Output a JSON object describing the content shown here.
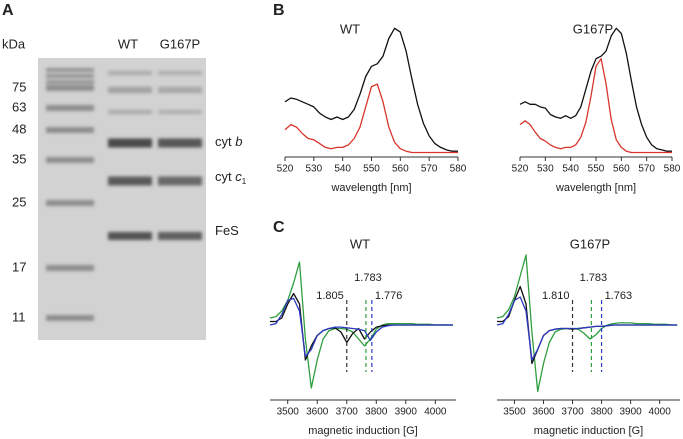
{
  "panel_labels": [
    "A",
    "B",
    "C"
  ],
  "gel": {
    "unit": "kDa",
    "markers": [
      75,
      63,
      48,
      35,
      25,
      17,
      11
    ],
    "lanes": [
      "WT",
      "G167P"
    ],
    "bands": [
      {
        "prefix": "cyt",
        "italic": "b"
      },
      {
        "prefix": "cyt",
        "italic": "c",
        "sub": "1"
      },
      {
        "prefix": "FeS"
      }
    ]
  },
  "chart_data": [
    {
      "type": "line",
      "title": "WT",
      "x_label": "wavelength [nm]",
      "x": [
        520,
        522,
        524,
        526,
        528,
        530,
        532,
        534,
        536,
        538,
        540,
        542,
        544,
        546,
        548,
        550,
        552,
        554,
        556,
        558,
        560,
        562,
        564,
        566,
        568,
        570,
        572,
        574,
        576,
        578,
        580
      ],
      "xlim": [
        520,
        580
      ],
      "xticks": [
        520,
        530,
        540,
        550,
        560,
        570,
        580
      ],
      "ylim": [
        0,
        1.05
      ],
      "series": [
        {
          "color": "#111111",
          "values": [
            0.42,
            0.45,
            0.44,
            0.42,
            0.4,
            0.38,
            0.33,
            0.3,
            0.28,
            0.3,
            0.28,
            0.3,
            0.36,
            0.48,
            0.62,
            0.7,
            0.72,
            0.78,
            0.92,
            1.0,
            0.97,
            0.82,
            0.6,
            0.4,
            0.25,
            0.15,
            0.09,
            0.06,
            0.04,
            0.03,
            0.03
          ]
        },
        {
          "color": "#d9342b",
          "values": [
            0.2,
            0.24,
            0.22,
            0.17,
            0.13,
            0.12,
            0.09,
            0.06,
            0.05,
            0.06,
            0.06,
            0.08,
            0.13,
            0.22,
            0.38,
            0.54,
            0.56,
            0.42,
            0.22,
            0.1,
            0.05,
            0.03,
            0.02,
            0.02,
            0.02,
            0.02,
            0.02,
            0.02,
            0.02,
            0.02,
            0.02
          ]
        }
      ]
    },
    {
      "type": "line",
      "title": "G167P",
      "x_label": "wavelength [nm]",
      "x": [
        520,
        522,
        524,
        526,
        528,
        530,
        532,
        534,
        536,
        538,
        540,
        542,
        544,
        546,
        548,
        550,
        552,
        554,
        556,
        558,
        560,
        562,
        564,
        566,
        568,
        570,
        572,
        574,
        576,
        578,
        580
      ],
      "xlim": [
        520,
        580
      ],
      "xticks": [
        520,
        530,
        540,
        550,
        560,
        570,
        580
      ],
      "ylim": [
        0,
        1.05
      ],
      "series": [
        {
          "color": "#111111",
          "values": [
            0.4,
            0.42,
            0.4,
            0.4,
            0.38,
            0.37,
            0.32,
            0.3,
            0.29,
            0.31,
            0.29,
            0.31,
            0.38,
            0.52,
            0.66,
            0.76,
            0.78,
            0.82,
            0.94,
            1.0,
            0.96,
            0.8,
            0.58,
            0.38,
            0.24,
            0.14,
            0.08,
            0.05,
            0.04,
            0.03,
            0.03
          ]
        },
        {
          "color": "#d9342b",
          "values": [
            0.24,
            0.27,
            0.24,
            0.18,
            0.13,
            0.11,
            0.08,
            0.06,
            0.05,
            0.06,
            0.06,
            0.08,
            0.14,
            0.26,
            0.46,
            0.7,
            0.76,
            0.56,
            0.28,
            0.12,
            0.06,
            0.03,
            0.02,
            0.02,
            0.02,
            0.02,
            0.02,
            0.02,
            0.02,
            0.02,
            0.02
          ]
        }
      ]
    },
    {
      "type": "line",
      "title": "WT",
      "x_label": "magnetic induction [G]",
      "x": [
        3440,
        3460,
        3480,
        3500,
        3520,
        3540,
        3560,
        3580,
        3600,
        3620,
        3640,
        3660,
        3680,
        3700,
        3720,
        3740,
        3760,
        3780,
        3800,
        3820,
        3840,
        3860,
        3880,
        3900,
        3920,
        3940,
        3960,
        3980,
        4000,
        4020,
        4040,
        4060
      ],
      "xlim": [
        3440,
        4070
      ],
      "xticks": [
        3500,
        3600,
        3700,
        3800,
        3900,
        4000
      ],
      "ylim": [
        -1,
        1
      ],
      "series": [
        {
          "color": "#2e9e3e",
          "values": [
            0.1,
            0.12,
            0.2,
            0.35,
            0.6,
            0.9,
            -0.2,
            -0.9,
            -0.5,
            -0.2,
            -0.08,
            -0.05,
            -0.05,
            -0.06,
            -0.1,
            -0.2,
            -0.3,
            -0.2,
            -0.06,
            0.0,
            0.02,
            0.02,
            0.02,
            0.02,
            0.02,
            0.01,
            0.01,
            0.01,
            0,
            0,
            0,
            0
          ]
        },
        {
          "color": "#111111",
          "values": [
            0.05,
            0.05,
            0.1,
            0.3,
            0.45,
            0.3,
            -0.5,
            -0.3,
            -0.15,
            -0.08,
            -0.05,
            -0.04,
            -0.1,
            -0.25,
            -0.12,
            -0.05,
            -0.2,
            -0.1,
            -0.03,
            -0.01,
            0,
            0,
            0,
            0,
            0,
            0,
            0,
            0,
            0,
            0,
            0,
            0
          ]
        },
        {
          "color": "#2b3bbf",
          "values": [
            0.0,
            0.02,
            0.15,
            0.35,
            0.38,
            0.2,
            -0.45,
            -0.35,
            -0.15,
            -0.08,
            -0.05,
            -0.03,
            -0.03,
            -0.04,
            -0.05,
            -0.06,
            -0.08,
            -0.22,
            -0.1,
            -0.03,
            -0.01,
            0,
            0,
            0,
            0,
            0,
            0,
            0,
            0,
            0,
            0,
            0
          ]
        }
      ],
      "annotations": [
        {
          "text": "1.805",
          "x": 3700,
          "color": "#333333"
        },
        {
          "text": "1.783",
          "x": 3765,
          "color": "#2e9e3e"
        },
        {
          "text": "1.776",
          "x": 3785,
          "color": "#2b3bbf"
        }
      ]
    },
    {
      "type": "line",
      "title": "G167P",
      "x_label": "magnetic induction [G]",
      "x": [
        3440,
        3460,
        3480,
        3500,
        3520,
        3540,
        3560,
        3580,
        3600,
        3620,
        3640,
        3660,
        3680,
        3700,
        3720,
        3740,
        3760,
        3780,
        3800,
        3820,
        3840,
        3860,
        3880,
        3900,
        3920,
        3940,
        3960,
        3980,
        4000,
        4020,
        4040,
        4060
      ],
      "xlim": [
        3440,
        4070
      ],
      "xticks": [
        3500,
        3600,
        3700,
        3800,
        3900,
        4000
      ],
      "ylim": [
        -1,
        1
      ],
      "series": [
        {
          "color": "#2e9e3e",
          "values": [
            0.1,
            0.12,
            0.22,
            0.4,
            0.7,
            1.0,
            -0.1,
            -0.95,
            -0.55,
            -0.25,
            -0.1,
            -0.06,
            -0.05,
            -0.05,
            -0.06,
            -0.12,
            -0.2,
            -0.14,
            -0.05,
            0.0,
            0.02,
            0.03,
            0.03,
            0.03,
            0.02,
            0.02,
            0.02,
            0.01,
            0.01,
            0.01,
            0,
            0
          ]
        },
        {
          "color": "#111111",
          "values": [
            0.05,
            0.05,
            0.12,
            0.35,
            0.55,
            0.3,
            -0.55,
            -0.35,
            -0.15,
            -0.08,
            -0.06,
            -0.05,
            -0.05,
            -0.06,
            -0.05,
            -0.04,
            -0.03,
            -0.02,
            -0.02,
            -0.01,
            0,
            0,
            0,
            0,
            0,
            0,
            0,
            0,
            0,
            0,
            0,
            0
          ]
        },
        {
          "color": "#2b3bbf",
          "values": [
            0.0,
            0.02,
            0.15,
            0.35,
            0.4,
            0.2,
            -0.5,
            -0.35,
            -0.15,
            -0.08,
            -0.06,
            -0.05,
            -0.05,
            -0.05,
            -0.05,
            -0.04,
            -0.03,
            -0.02,
            -0.02,
            -0.01,
            0,
            0,
            0,
            0,
            0,
            0,
            0,
            0,
            0,
            0,
            0,
            0
          ]
        }
      ],
      "annotations": [
        {
          "text": "1.810",
          "x": 3700,
          "color": "#333333"
        },
        {
          "text": "1.783",
          "x": 3765,
          "color": "#2e9e3e"
        },
        {
          "text": "1.763",
          "x": 3800,
          "color": "#2b3bbf"
        }
      ]
    }
  ]
}
